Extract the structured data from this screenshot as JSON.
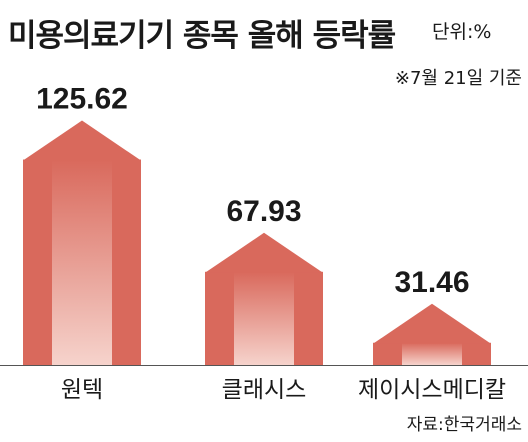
{
  "title": "미용의료기기 종목 올해 등락률",
  "unit_label": "단위:%",
  "date_note": "※7월 21일 기준",
  "source": "자료:한국거래소",
  "colors": {
    "arrow_dark": "#d9695c",
    "arrow_light": "#f6d3cc",
    "axis": "#555555"
  },
  "chart_data": {
    "type": "bar",
    "title": "미용의료기기 종목 올해 등락률",
    "unit": "%",
    "categories": [
      "원텍",
      "클래시스",
      "제이시스메디칼"
    ],
    "values": [
      125.62,
      67.93,
      31.46
    ],
    "value_labels": [
      "125.62",
      "67.93",
      "31.46"
    ],
    "ylim": [
      0,
      130
    ],
    "grid": false,
    "mark": "up-arrow"
  }
}
